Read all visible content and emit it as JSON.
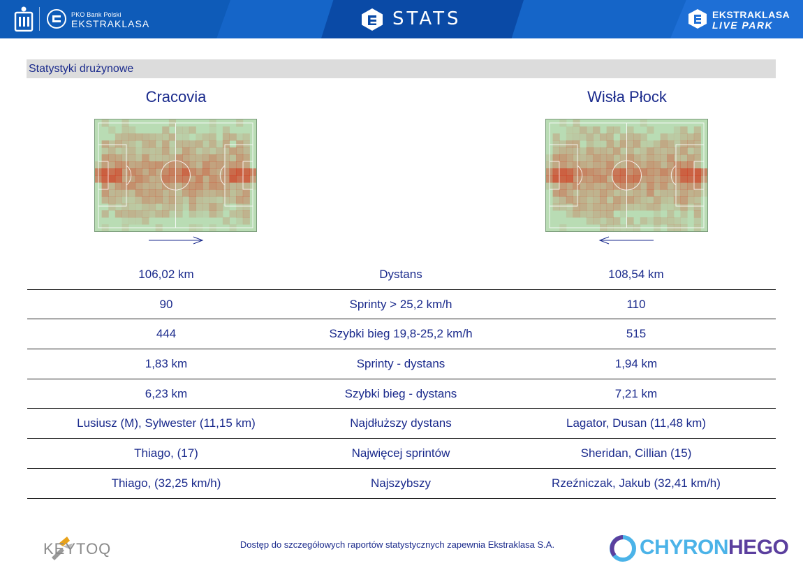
{
  "header": {
    "left_logo_small": "PKO Bank Polski",
    "left_logo_big": "EKSTRAKLASA",
    "center_title": "STATS",
    "right_logo_line1": "EKSTRAKLASA",
    "right_logo_line2": "LIVE PARK",
    "colors": {
      "bar": "#1565c8",
      "text": "#ffffff"
    }
  },
  "section": {
    "title": "Statystyki drużynowe"
  },
  "teams": {
    "left": {
      "name": "Cracovia",
      "attack_direction": "right"
    },
    "right": {
      "name": "Wisła Płock",
      "attack_direction": "left"
    }
  },
  "stats": [
    {
      "left": "106,02 km",
      "label": "Dystans",
      "right": "108,54 km"
    },
    {
      "left": "90",
      "label": "Sprinty > 25,2 km/h",
      "right": "110"
    },
    {
      "left": "444",
      "label": "Szybki bieg 19,8-25,2 km/h",
      "right": "515"
    },
    {
      "left": "1,83 km",
      "label": "Sprinty - dystans",
      "right": "1,94 km"
    },
    {
      "left": "6,23 km",
      "label": "Szybki bieg - dystans",
      "right": "7,21 km"
    },
    {
      "left": "Lusiusz (M), Sylwester (11,15 km)",
      "label": "Najdłuższy dystans",
      "right": "Lagator, Dusan (11,48 km)"
    },
    {
      "left": "Thiago,  (17)",
      "label": "Najwięcej sprintów",
      "right": "Sheridan, Cillian (15)"
    },
    {
      "left": "Thiago,  (32,25 km/h)",
      "label": "Najszybszy",
      "right": "Rzeźniczak, Jakub (32,41 km/h)"
    }
  ],
  "footer": {
    "note": "Dostęp do szczegółowych raportów statystycznych zapewnia Ekstraklasa S.A.",
    "left_logo": "KEYTOQ",
    "right_logo_a": "CHYRON",
    "right_logo_b": "HEGO"
  },
  "colors": {
    "text_primary": "#1a2a8c",
    "section_bar": "#dcdcdc",
    "pitch": "#b9dcb4",
    "heat": "#d2361a"
  }
}
